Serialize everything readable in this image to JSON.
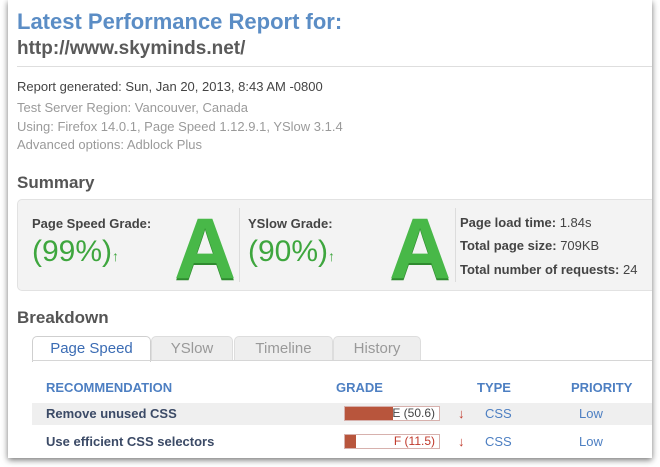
{
  "header": {
    "title": "Latest Performance Report for:",
    "url": "http://www.skyminds.net/"
  },
  "meta": {
    "report_generated": "Report generated: Sun, Jan 20, 2013, 8:43 AM -0800",
    "region": "Test Server Region: Vancouver, Canada",
    "using": "Using: Firefox 14.0.1, Page Speed 1.12.9.1, YSlow 3.1.4",
    "advanced": "Advanced options: Adblock Plus"
  },
  "summary": {
    "heading": "Summary",
    "pagespeed": {
      "label": "Page Speed Grade:",
      "percent": "(99%)",
      "letter": "A",
      "arrow": "↑"
    },
    "yslow": {
      "label": "YSlow Grade:",
      "percent": "(90%)",
      "letter": "A",
      "arrow": "↑"
    },
    "stats": {
      "load_label": "Page load time:",
      "load_value": "1.84s",
      "size_label": "Total page size:",
      "size_value": "709KB",
      "req_label": "Total number of requests:",
      "req_value": "24"
    }
  },
  "breakdown": {
    "heading": "Breakdown",
    "tabs": [
      "Page Speed",
      "YSlow",
      "Timeline",
      "History"
    ],
    "active_tab": "Page Speed",
    "columns": [
      "RECOMMENDATION",
      "GRADE",
      "TYPE",
      "PRIORITY"
    ],
    "rows": [
      {
        "name": "Remove unused CSS",
        "grade": "E (50.6)",
        "score": 50.6,
        "trend": "↓",
        "type": "CSS",
        "priority": "Low"
      },
      {
        "name": "Use efficient CSS selectors",
        "grade": "F (11.5)",
        "score": 11.5,
        "trend": "↓",
        "type": "CSS",
        "priority": "Low"
      }
    ]
  },
  "colors": {
    "title_blue": "#5b8dc5",
    "grade_green": "#3ea63e",
    "bar_fill": "#b8553c"
  }
}
